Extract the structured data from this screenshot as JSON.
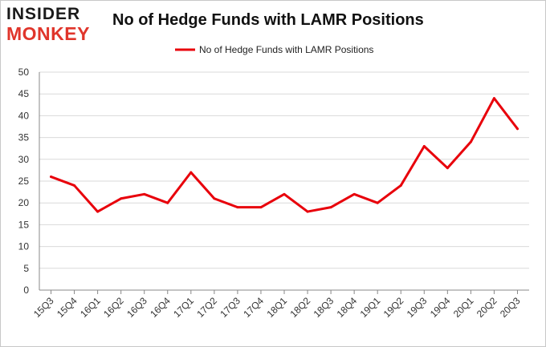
{
  "logo": {
    "line1": "INSIDER",
    "line2": "MONKEY"
  },
  "colors": {
    "series": "#e8000b",
    "grid": "#d9d9d9",
    "axis": "#888888"
  },
  "chart_data": {
    "type": "line",
    "title": "No of Hedge Funds with LAMR Positions",
    "xlabel": "",
    "ylabel": "",
    "ylim": [
      0,
      50
    ],
    "yticks": [
      0,
      5,
      10,
      15,
      20,
      25,
      30,
      35,
      40,
      45,
      50
    ],
    "grid": true,
    "legend_position": "top-center",
    "categories": [
      "15Q3",
      "15Q4",
      "16Q1",
      "16Q2",
      "16Q3",
      "16Q4",
      "17Q1",
      "17Q2",
      "17Q3",
      "17Q4",
      "18Q1",
      "18Q2",
      "18Q3",
      "18Q4",
      "19Q1",
      "19Q2",
      "19Q3",
      "19Q4",
      "20Q1",
      "20Q2",
      "20Q3"
    ],
    "series": [
      {
        "name": "No of Hedge Funds with LAMR Positions",
        "values": [
          26,
          24,
          18,
          21,
          22,
          20,
          27,
          21,
          19,
          19,
          22,
          18,
          19,
          22,
          20,
          24,
          33,
          28,
          34,
          44,
          37
        ]
      }
    ]
  }
}
